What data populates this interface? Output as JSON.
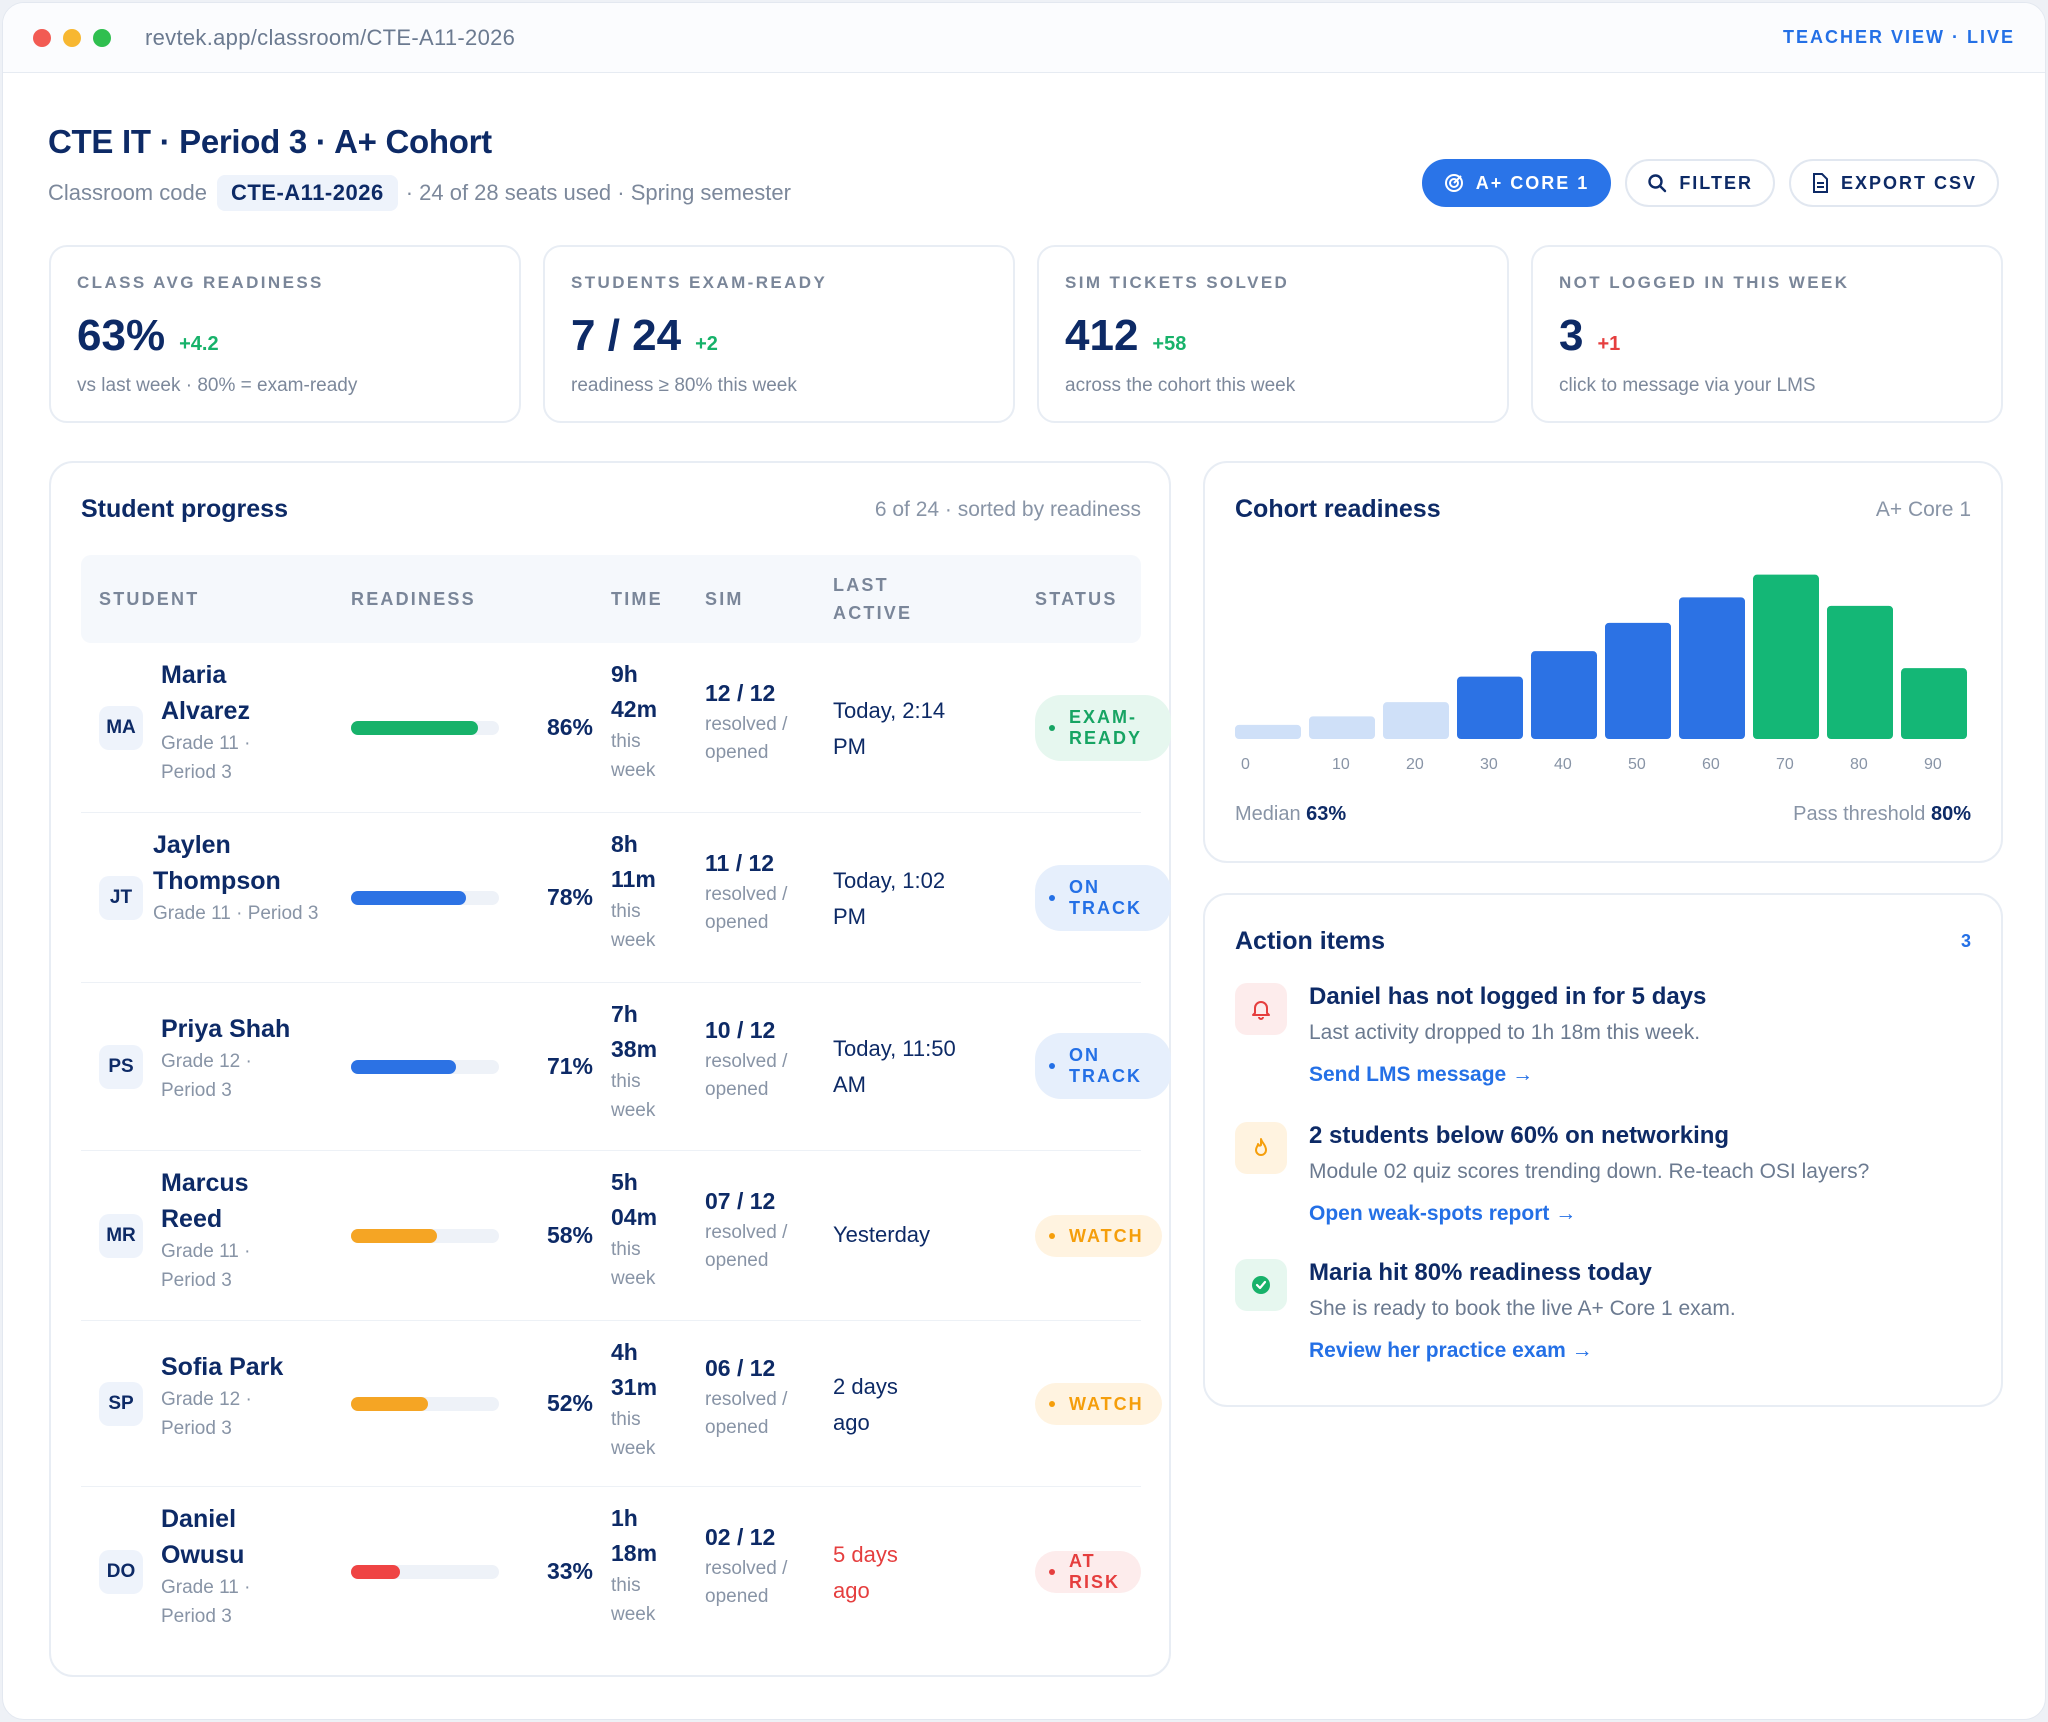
{
  "window": {
    "url": "revtek.app/classroom/CTE-A11-2026",
    "mode": "TEACHER VIEW · LIVE",
    "dots": [
      "#f25b53",
      "#f7b731",
      "#2fbf4f"
    ]
  },
  "header": {
    "title": "CTE IT · Period 3 · A+ Cohort",
    "code_label": "Classroom code",
    "code": "CTE-A11-2026",
    "seats": "· 24 of 28 seats used · Spring semester"
  },
  "actions": {
    "core": "A+ CORE 1",
    "filter": "FILTER",
    "export": "EXPORT CSV"
  },
  "kpis": [
    {
      "label": "CLASS AVG READINESS",
      "value": "63%",
      "delta": "+4.2",
      "note": "vs last week · 80% = exam-ready"
    },
    {
      "label": "STUDENTS EXAM-READY",
      "value": "7 / 24",
      "delta": "+2",
      "note": "readiness ≥ 80% this week"
    },
    {
      "label": "SIM TICKETS SOLVED",
      "value": "412",
      "delta": "+58",
      "note": "across the cohort this week"
    },
    {
      "label": "NOT LOGGED IN THIS WEEK",
      "value": "3",
      "delta": "+1",
      "note": "click to message via your LMS"
    }
  ],
  "progress": {
    "title": "Student progress",
    "meta": "6 of 24 · sorted by readiness",
    "columns": {
      "student": "STUDENT",
      "readiness": "READINESS",
      "time": "TIME",
      "sim": "SIM",
      "last": "LAST ACTIVE",
      "status": "STATUS"
    },
    "rows": [
      {
        "initials": "MA",
        "name": "Maria Alvarez",
        "grade": "Grade 11 · Period 3",
        "readiness": 86,
        "readiness_label": "86%",
        "time": "9h 42m",
        "time_note": "this week",
        "sim": "12 / 12",
        "sim_note": "resolved / opened",
        "last": "Today, 2:14 PM",
        "status": "EXAM-READY"
      },
      {
        "initials": "JT",
        "name": "Jaylen Thompson",
        "grade": "Grade 11 · Period 3",
        "readiness": 78,
        "readiness_label": "78%",
        "time": "8h 11m",
        "time_note": "this week",
        "sim": "11 / 12",
        "sim_note": "resolved / opened",
        "last": "Today, 1:02 PM",
        "status": "ON TRACK"
      },
      {
        "initials": "PS",
        "name": "Priya Shah",
        "grade": "Grade 12 · Period 3",
        "readiness": 71,
        "readiness_label": "71%",
        "time": "7h 38m",
        "time_note": "this week",
        "sim": "10 / 12",
        "sim_note": "resolved / opened",
        "last": "Today, 11:50 AM",
        "status": "ON TRACK"
      },
      {
        "initials": "MR",
        "name": "Marcus Reed",
        "grade": "Grade 11 · Period 3",
        "readiness": 58,
        "readiness_label": "58%",
        "time": "5h 04m",
        "time_note": "this week",
        "sim": "07 / 12",
        "sim_note": "resolved / opened",
        "last": "Yesterday",
        "status": "WATCH"
      },
      {
        "initials": "SP",
        "name": "Sofia Park",
        "grade": "Grade 12 · Period 3",
        "readiness": 52,
        "readiness_label": "52%",
        "time": "4h 31m",
        "time_note": "this week",
        "sim": "06 / 12",
        "sim_note": "resolved / opened",
        "last": "2 days ago",
        "status": "WATCH"
      },
      {
        "initials": "DO",
        "name": "Daniel Owusu",
        "grade": "Grade 11 · Period 3",
        "readiness": 33,
        "readiness_label": "33%",
        "time": "1h 18m",
        "time_note": "this week",
        "sim": "02 / 12",
        "sim_note": "resolved / opened",
        "last": "5 days ago",
        "status": "AT RISK"
      }
    ]
  },
  "cohort": {
    "title": "Cohort readiness",
    "meta": "A+ Core 1",
    "median_label": "Median",
    "median": "63%",
    "pass_label": "Pass threshold",
    "pass": "80%"
  },
  "chart_data": {
    "type": "bar",
    "title": "Cohort readiness",
    "categories": [
      "0",
      "10",
      "20",
      "30",
      "40",
      "50",
      "60",
      "70",
      "80",
      "90"
    ],
    "values": [
      0.5,
      0.8,
      1.3,
      2.2,
      3.1,
      4.1,
      5.0,
      5.8,
      4.7,
      2.5
    ],
    "colors": [
      "#cfe0f8",
      "#cfe0f8",
      "#cfe0f8",
      "#2c72e4",
      "#2c72e4",
      "#2c72e4",
      "#2c72e4",
      "#14b776",
      "#14b776",
      "#14b776"
    ],
    "xlabel": "",
    "ylabel": "",
    "ylim": [
      0,
      6
    ]
  },
  "action_items": {
    "title": "Action items",
    "count": "3",
    "items": [
      {
        "icon": "bell-icon",
        "title": "Daniel has not logged in for 5 days",
        "desc": "Last activity dropped to 1h 18m this week.",
        "link": "Send LMS message →",
        "bg": "#fdecec",
        "color": "#e53e3e"
      },
      {
        "icon": "flame-icon",
        "title": "2 students below 60% on networking",
        "desc": "Module 02 quiz scores trending down. Re-teach OSI layers?",
        "link": "Open weak-spots report →",
        "bg": "#fff3e0",
        "color": "#f59e0b"
      },
      {
        "icon": "check-circle-icon",
        "title": "Maria hit 80% readiness today",
        "desc": "She is ready to book the live A+ Core 1 exam.",
        "link": "Review her practice exam →",
        "bg": "#e6f7ef",
        "color": "#17b26a"
      }
    ]
  }
}
